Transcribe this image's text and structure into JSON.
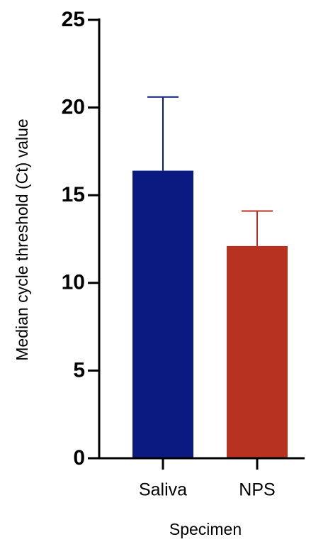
{
  "chart_data": {
    "type": "bar",
    "x_label": "Specimen",
    "y_label": "Median cycle threshold (Ct) value",
    "categories": [
      "Saliva",
      "NPS"
    ],
    "values": [
      16.4,
      12.1
    ],
    "errors": [
      4.2,
      2.0
    ],
    "colors": [
      "#0b1a80",
      "#b83221"
    ],
    "ylim": [
      0,
      25
    ],
    "yticks": [
      0,
      5,
      10,
      15,
      20,
      25
    ]
  }
}
